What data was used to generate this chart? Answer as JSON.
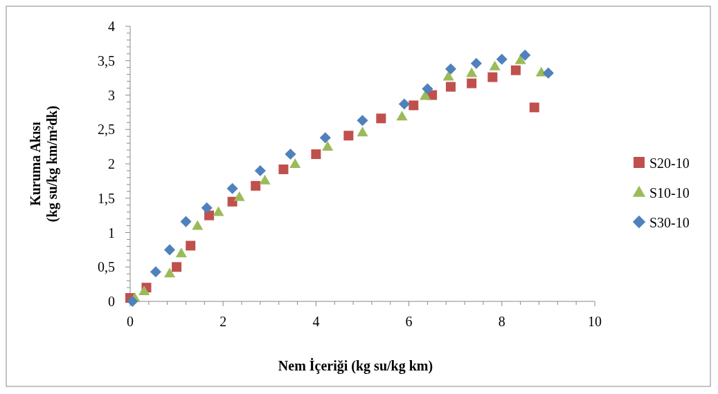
{
  "chart_data": {
    "type": "scatter",
    "xlabel": "Nem İçeriği (kg su/kg km)",
    "ylabel": "Kuruma Akısı\n(kg su/kg km/m²dk)",
    "xlim": [
      0,
      10
    ],
    "ylim": [
      0,
      4
    ],
    "xticks": [
      0,
      {
        "value": 0.4,
        "label": null
      },
      {
        "value": 0.8,
        "label": null
      },
      {
        "value": 1.2,
        "label": null
      },
      {
        "value": 1.6,
        "label": null
      },
      2,
      {
        "value": 2.4,
        "label": null
      },
      {
        "value": 2.8,
        "label": null
      },
      {
        "value": 3.2,
        "label": null
      },
      {
        "value": 3.6,
        "label": null
      },
      4,
      {
        "value": 4.4,
        "label": null
      },
      {
        "value": 4.8,
        "label": null
      },
      {
        "value": 5.2,
        "label": null
      },
      {
        "value": 5.6,
        "label": null
      },
      6,
      {
        "value": 6.4,
        "label": null
      },
      {
        "value": 6.8,
        "label": null
      },
      {
        "value": 7.2,
        "label": null
      },
      {
        "value": 7.6,
        "label": null
      },
      8,
      {
        "value": 8.4,
        "label": null
      },
      {
        "value": 8.8,
        "label": null
      },
      {
        "value": 9.2,
        "label": null
      },
      {
        "value": 9.6,
        "label": null
      },
      10
    ],
    "yticks": [
      0,
      {
        "value": 0.1,
        "label": null
      },
      {
        "value": 0.2,
        "label": null
      },
      {
        "value": 0.3,
        "label": null
      },
      {
        "value": 0.4,
        "label": null
      },
      {
        "value": 0.5,
        "label": "0,5"
      },
      {
        "value": 0.6,
        "label": null
      },
      {
        "value": 0.7,
        "label": null
      },
      {
        "value": 0.8,
        "label": null
      },
      {
        "value": 0.9,
        "label": null
      },
      1,
      {
        "value": 1.1,
        "label": null
      },
      {
        "value": 1.2,
        "label": null
      },
      {
        "value": 1.3,
        "label": null
      },
      {
        "value": 1.4,
        "label": null
      },
      {
        "value": 1.5,
        "label": "1,5"
      },
      {
        "value": 1.6,
        "label": null
      },
      {
        "value": 1.7,
        "label": null
      },
      {
        "value": 1.8,
        "label": null
      },
      {
        "value": 1.9,
        "label": null
      },
      2,
      {
        "value": 2.1,
        "label": null
      },
      {
        "value": 2.2,
        "label": null
      },
      {
        "value": 2.3,
        "label": null
      },
      {
        "value": 2.4,
        "label": null
      },
      {
        "value": 2.5,
        "label": "2,5"
      },
      {
        "value": 2.6,
        "label": null
      },
      {
        "value": 2.7,
        "label": null
      },
      {
        "value": 2.8,
        "label": null
      },
      {
        "value": 2.9,
        "label": null
      },
      3,
      {
        "value": 3.1,
        "label": null
      },
      {
        "value": 3.2,
        "label": null
      },
      {
        "value": 3.3,
        "label": null
      },
      {
        "value": 3.4,
        "label": null
      },
      {
        "value": 3.5,
        "label": "3,5"
      },
      {
        "value": 3.6,
        "label": null
      },
      {
        "value": 3.7,
        "label": null
      },
      {
        "value": 3.8,
        "label": null
      },
      {
        "value": 3.9,
        "label": null
      },
      4
    ],
    "grid": false,
    "legend": "right",
    "series": [
      {
        "name": "S20-10",
        "color": "#c0504d",
        "marker": "square",
        "x": [
          0,
          0.35,
          1,
          1.3,
          1.7,
          2.2,
          2.7,
          3.3,
          4,
          4.7,
          5.4,
          6.1,
          6.5,
          6.9,
          7.35,
          7.8,
          8.3,
          8.7
        ],
        "values": [
          0.05,
          0.2,
          0.5,
          0.81,
          1.25,
          1.45,
          1.68,
          1.92,
          2.14,
          2.41,
          2.66,
          2.85,
          3,
          3.12,
          3.17,
          3.26,
          3.36,
          2.82
        ]
      },
      {
        "name": "S10-10",
        "color": "#9bbb59",
        "marker": "triangle",
        "x": [
          0.1,
          0.3,
          0.85,
          1.1,
          1.45,
          1.9,
          2.35,
          2.9,
          3.55,
          4.25,
          5,
          5.85,
          6.35,
          6.85,
          7.35,
          7.85,
          8.4,
          8.85
        ],
        "values": [
          0.05,
          0.15,
          0.41,
          0.7,
          1.1,
          1.3,
          1.52,
          1.76,
          2,
          2.25,
          2.46,
          2.69,
          2.99,
          3.27,
          3.32,
          3.42,
          3.51,
          3.33
        ]
      },
      {
        "name": "S30-10",
        "color": "#4f81bd",
        "marker": "diamond",
        "x": [
          0.05,
          0.55,
          0.85,
          1.2,
          1.65,
          2.2,
          2.8,
          3.45,
          4.2,
          5,
          5.9,
          6.4,
          6.9,
          7.45,
          8,
          8.5,
          9
        ],
        "values": [
          0,
          0.43,
          0.75,
          1.16,
          1.36,
          1.64,
          1.9,
          2.14,
          2.38,
          2.63,
          2.87,
          3.09,
          3.38,
          3.46,
          3.52,
          3.58,
          3.32
        ]
      }
    ]
  }
}
